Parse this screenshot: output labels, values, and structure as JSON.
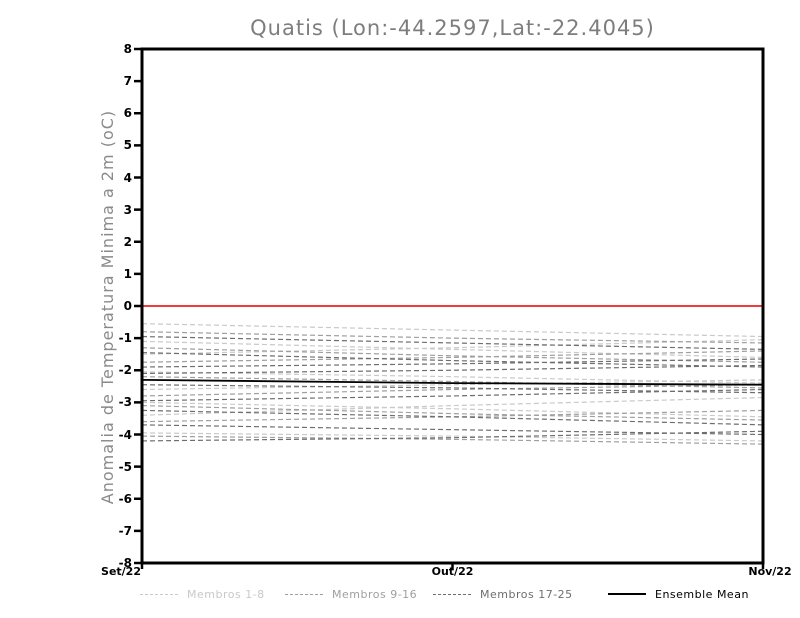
{
  "title": "Quatis (Lon:-44.2597,Lat:-22.4045)",
  "chart_data": {
    "type": "line",
    "title": "Quatis (Lon:-44.2597,Lat:-22.4045)",
    "xlabel": "",
    "ylabel": "Anomalia de Temperatura Minima a 2m (oC)",
    "x_categories": [
      "Set/22",
      "Out/22",
      "Nov/22"
    ],
    "ylim": [
      -8,
      8
    ],
    "y_ticks": [
      8,
      7,
      6,
      5,
      4,
      3,
      2,
      1,
      0,
      -1,
      -2,
      -3,
      -4,
      -5,
      -6,
      -7,
      -8
    ],
    "grid": false,
    "legend_position": "bottom",
    "zero_line": {
      "value": 0,
      "color": "#f23c3c"
    },
    "axis_color": "#000000",
    "groups": [
      {
        "name": "Membros 1-8",
        "color": "#c9c9c9",
        "style": "dashed"
      },
      {
        "name": "Membros 9-16",
        "color": "#9f9f9f",
        "style": "dashed"
      },
      {
        "name": "Membros 17-25",
        "color": "#6e6e6e",
        "style": "dashed"
      },
      {
        "name": "Ensemble Mean",
        "color": "#000000",
        "style": "solid"
      }
    ],
    "series": [
      {
        "group": 0,
        "values": [
          -0.55,
          -0.75,
          -0.95
        ]
      },
      {
        "group": 0,
        "values": [
          -1.1,
          -1.35,
          -1.6
        ]
      },
      {
        "group": 0,
        "values": [
          -1.5,
          -1.3,
          -1.05
        ]
      },
      {
        "group": 0,
        "values": [
          -2.05,
          -2.2,
          -2.4
        ]
      },
      {
        "group": 0,
        "values": [
          -2.6,
          -2.45,
          -2.3
        ]
      },
      {
        "group": 0,
        "values": [
          -3.0,
          -3.2,
          -3.45
        ]
      },
      {
        "group": 0,
        "values": [
          -3.4,
          -3.1,
          -2.85
        ]
      },
      {
        "group": 0,
        "values": [
          -3.95,
          -4.05,
          -4.2
        ]
      },
      {
        "group": 1,
        "values": [
          -0.8,
          -1.0,
          -1.15
        ]
      },
      {
        "group": 1,
        "values": [
          -1.3,
          -1.55,
          -1.75
        ]
      },
      {
        "group": 1,
        "values": [
          -1.75,
          -1.6,
          -1.4
        ]
      },
      {
        "group": 1,
        "values": [
          -2.2,
          -2.35,
          -2.55
        ]
      },
      {
        "group": 1,
        "values": [
          -2.8,
          -2.6,
          -2.45
        ]
      },
      {
        "group": 1,
        "values": [
          -3.1,
          -3.35,
          -3.55
        ]
      },
      {
        "group": 1,
        "values": [
          -3.6,
          -3.45,
          -3.25
        ]
      },
      {
        "group": 1,
        "values": [
          -4.05,
          -4.15,
          -4.3
        ]
      },
      {
        "group": 2,
        "values": [
          -0.95,
          -1.15,
          -1.35
        ]
      },
      {
        "group": 2,
        "values": [
          -1.45,
          -1.7,
          -1.9
        ]
      },
      {
        "group": 2,
        "values": [
          -1.9,
          -1.8,
          -1.65
        ]
      },
      {
        "group": 2,
        "values": [
          -2.1,
          -2.0,
          -1.85
        ]
      },
      {
        "group": 2,
        "values": [
          -2.45,
          -2.55,
          -2.7
        ]
      },
      {
        "group": 2,
        "values": [
          -2.95,
          -2.8,
          -2.6
        ]
      },
      {
        "group": 2,
        "values": [
          -3.25,
          -3.45,
          -3.7
        ]
      },
      {
        "group": 2,
        "values": [
          -3.7,
          -3.85,
          -4.0
        ]
      },
      {
        "group": 2,
        "values": [
          -4.2,
          -4.1,
          -3.9
        ]
      },
      {
        "group": 3,
        "values": [
          -2.3,
          -2.4,
          -2.45
        ]
      }
    ]
  },
  "legend": {
    "entries": [
      {
        "label": "Membros 1-8",
        "color": "#c9c9c9",
        "style": "dashed"
      },
      {
        "label": "Membros 9-16",
        "color": "#9f9f9f",
        "style": "dashed"
      },
      {
        "label": "Membros 17-25",
        "color": "#6e6e6e",
        "style": "dashed"
      },
      {
        "label": "Ensemble Mean",
        "color": "#000000",
        "style": "solid"
      }
    ]
  }
}
